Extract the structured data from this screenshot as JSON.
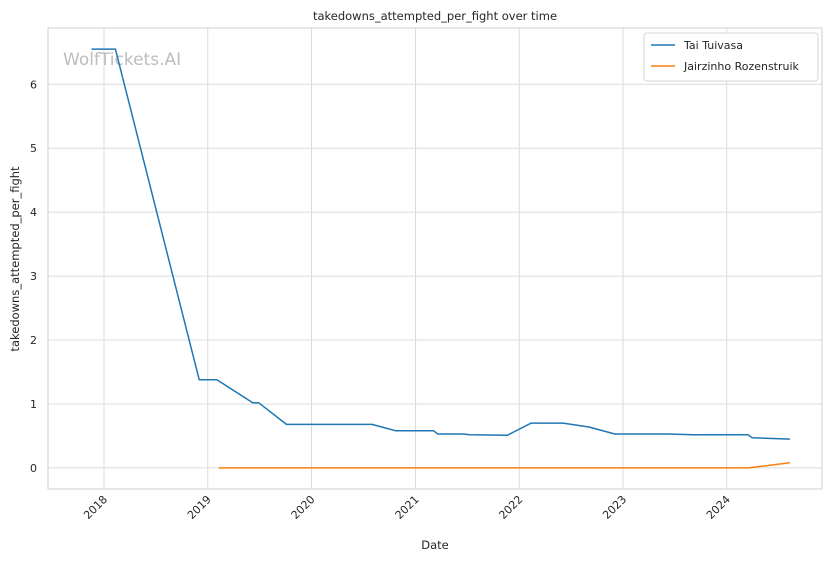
{
  "watermark": "WolfTickets.AI",
  "chart_data": {
    "type": "line",
    "title": "takedowns_attempted_per_fight over time",
    "xlabel": "Date",
    "ylabel": "takedowns_attempted_per_fight",
    "x_ticks": [
      "2018",
      "2019",
      "2020",
      "2021",
      "2022",
      "2023",
      "2024"
    ],
    "y_ticks": [
      "0",
      "1",
      "2",
      "3",
      "4",
      "5",
      "6"
    ],
    "xlim": [
      "2017-06-18",
      "2024-12-01"
    ],
    "ylim": [
      -0.33,
      6.88
    ],
    "grid": true,
    "legend_position": "top-right",
    "series": [
      {
        "name": "Tai Tuivasa",
        "color": "#1f77b4",
        "points": [
          [
            "2017-11-18",
            6.55
          ],
          [
            "2018-02-10",
            6.55
          ],
          [
            "2018-12-02",
            1.38
          ],
          [
            "2019-02-02",
            1.38
          ],
          [
            "2019-06-08",
            1.02
          ],
          [
            "2019-06-29",
            1.02
          ],
          [
            "2019-10-05",
            0.68
          ],
          [
            "2020-08-01",
            0.68
          ],
          [
            "2020-10-24",
            0.58
          ],
          [
            "2021-03-06",
            0.58
          ],
          [
            "2021-03-20",
            0.53
          ],
          [
            "2021-06-19",
            0.53
          ],
          [
            "2021-07-10",
            0.52
          ],
          [
            "2021-11-20",
            0.51
          ],
          [
            "2022-02-12",
            0.7
          ],
          [
            "2022-06-04",
            0.7
          ],
          [
            "2022-09-03",
            0.64
          ],
          [
            "2022-12-03",
            0.53
          ],
          [
            "2023-06-10",
            0.53
          ],
          [
            "2023-09-02",
            0.52
          ],
          [
            "2024-03-16",
            0.52
          ],
          [
            "2024-03-30",
            0.47
          ],
          [
            "2024-08-10",
            0.45
          ]
        ]
      },
      {
        "name": "Jairzinho Rozenstruik",
        "color": "#ff7f0e",
        "points": [
          [
            "2019-02-09",
            0.0
          ],
          [
            "2024-03-16",
            0.0
          ],
          [
            "2024-08-10",
            0.08
          ]
        ]
      }
    ]
  }
}
